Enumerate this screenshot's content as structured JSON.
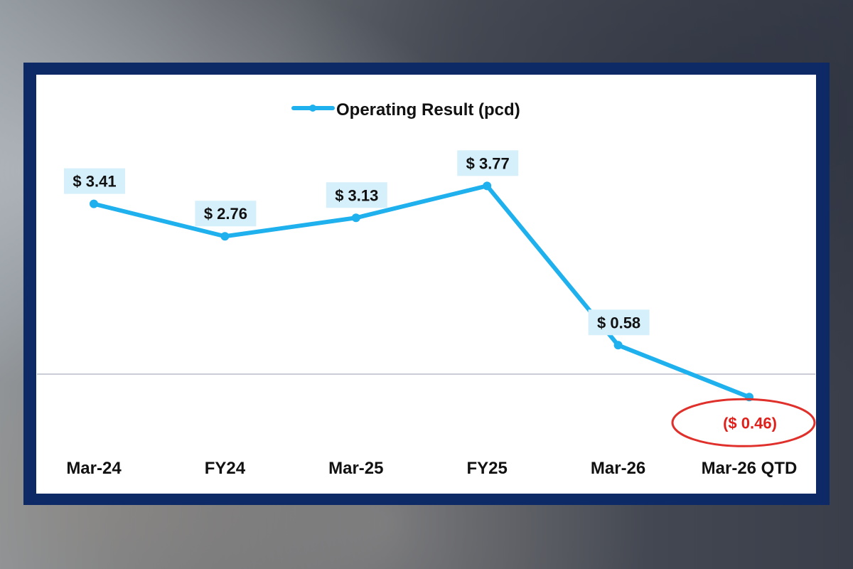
{
  "chart_data": {
    "type": "line",
    "categories": [
      "Mar-24",
      "FY24",
      "Mar-25",
      "FY25",
      "Mar-26",
      "Mar-26 QTD"
    ],
    "series": [
      {
        "name": "Operating Result (pcd)",
        "values": [
          3.41,
          2.76,
          3.13,
          3.77,
          0.58,
          -0.46
        ],
        "data_labels": [
          "$ 3.41",
          "$ 2.76",
          "$ 3.13",
          "$ 3.77",
          "$ 0.58",
          "($ 0.46)"
        ]
      }
    ],
    "title": "",
    "xlabel": "",
    "ylabel": "",
    "ylim": [
      -1.5,
      4.5
    ],
    "grid": false,
    "legend": "top-center",
    "highlight": {
      "index": 5,
      "style": "circled"
    }
  },
  "colors": {
    "line": "#1fb0ee",
    "label_bg": "#d6f0fb",
    "negative_text": "#e0201b",
    "highlight_ring": "#e0302b",
    "frame": "#0d2a66",
    "zero_line": "#b8bcc8"
  }
}
